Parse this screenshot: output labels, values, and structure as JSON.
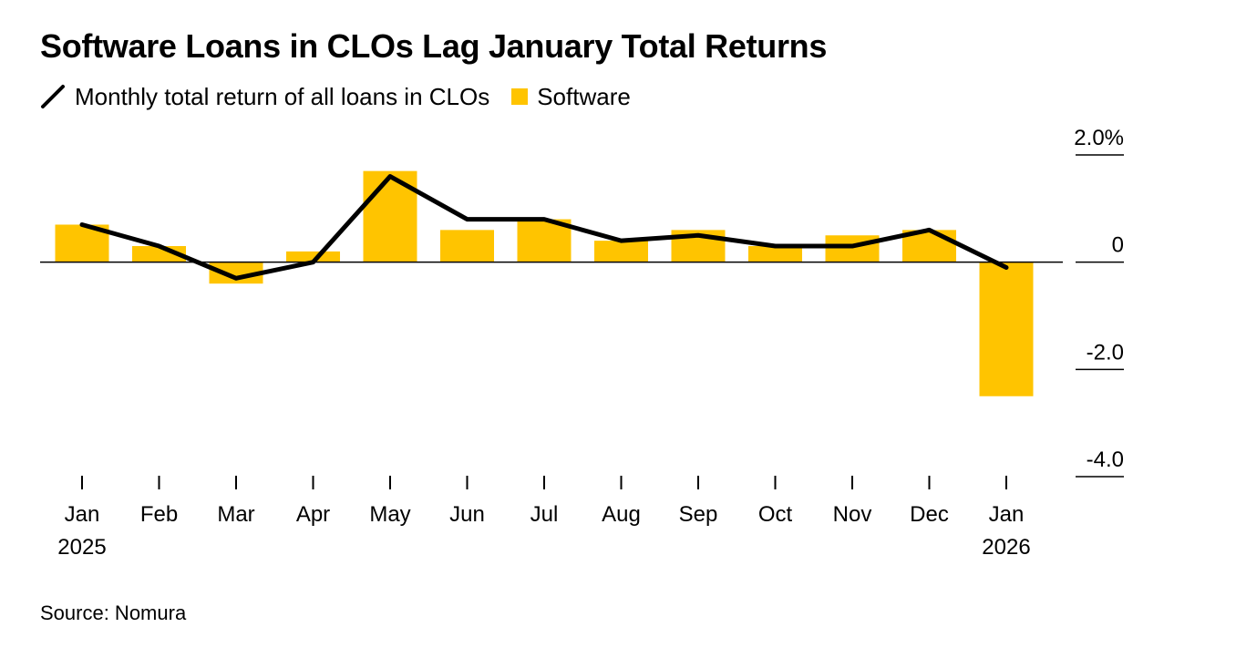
{
  "title": "Software Loans in CLOs Lag January Total Returns",
  "legend": {
    "line_label": "Monthly total return of all loans in CLOs",
    "bar_label": "Software"
  },
  "source": "Source: Nomura",
  "colors": {
    "bar": "#ffc400",
    "line": "#000000",
    "axis": "#000000"
  },
  "chart_data": {
    "type": "bar",
    "title": "Software Loans in CLOs Lag January Total Returns",
    "xlabel": "",
    "ylabel": "",
    "ylim": [
      -4.0,
      2.0
    ],
    "categories": [
      "Jan",
      "Feb",
      "Mar",
      "Apr",
      "May",
      "Jun",
      "Jul",
      "Aug",
      "Sep",
      "Oct",
      "Nov",
      "Dec",
      "Jan"
    ],
    "category_years": [
      "2025",
      "",
      "",
      "",
      "",
      "",
      "",
      "",
      "",
      "",
      "",
      "",
      "2026"
    ],
    "y_ticks": [
      {
        "value": 2.0,
        "label": "2.0%"
      },
      {
        "value": 0,
        "label": "0"
      },
      {
        "value": -2.0,
        "label": "-2.0"
      },
      {
        "value": -4.0,
        "label": "-4.0"
      }
    ],
    "legend_position": "top-left",
    "grid": false,
    "series": [
      {
        "name": "Software",
        "type": "bar",
        "values": [
          0.7,
          0.3,
          -0.4,
          0.2,
          1.7,
          0.6,
          0.8,
          0.4,
          0.6,
          0.3,
          0.5,
          0.6,
          -2.5
        ]
      },
      {
        "name": "Monthly total return of all loans in CLOs",
        "type": "line",
        "values": [
          0.7,
          0.3,
          -0.3,
          0.0,
          1.6,
          0.8,
          0.8,
          0.4,
          0.5,
          0.3,
          0.3,
          0.6,
          -0.1
        ]
      }
    ]
  }
}
